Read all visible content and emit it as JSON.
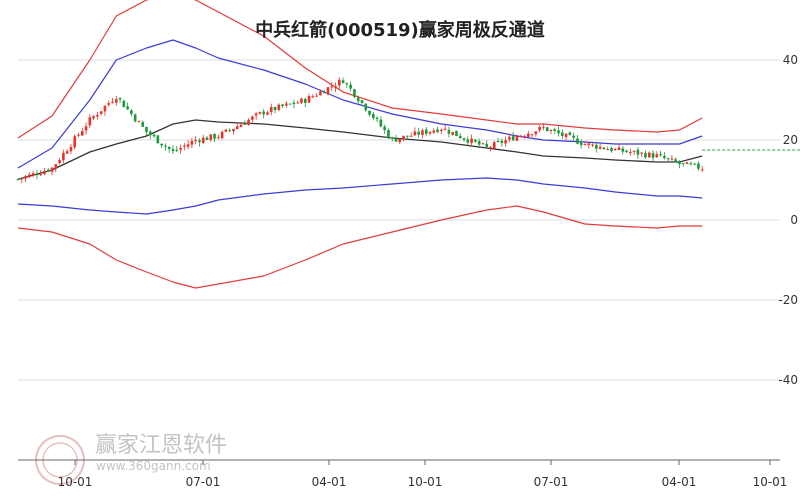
{
  "chart_data": {
    "type": "candlestick",
    "title": "中兵红箭(000519)赢家周极反通道",
    "x_tick_labels": [
      "10-01",
      "07-01",
      "04-01",
      "10-01",
      "07-01",
      "04-01",
      "10-01"
    ],
    "y_tick_labels": [
      "40",
      "20",
      "0",
      "-20",
      "-40"
    ],
    "ylim": [
      -40,
      40
    ],
    "grid": "horizontal",
    "colors": {
      "up": "#e8332a",
      "down": "#1a9a3a",
      "outer_band": "#e23b3b",
      "inner_band": "#3b3bd8",
      "middle_line": "#333333",
      "last_price_line": "#2ca02c"
    },
    "weeks": [
      1,
      10,
      20,
      27,
      35,
      42,
      48,
      54,
      66,
      77,
      87,
      100,
      113,
      125,
      133,
      140,
      151,
      159,
      170,
      176,
      182
    ],
    "closes": [
      10.2,
      13,
      25,
      31,
      22,
      17,
      20,
      21,
      27,
      30,
      35,
      20,
      23,
      18,
      21,
      23,
      19,
      17.5,
      16,
      14,
      13
    ],
    "outer_upper": [
      20.5,
      26,
      40,
      51,
      55,
      56.5,
      55,
      52,
      46,
      38,
      32,
      28,
      26.5,
      25,
      24,
      24,
      23,
      22.5,
      22,
      22.5,
      25.5
    ],
    "inner_upper": [
      13,
      18,
      30,
      40,
      43,
      45,
      43,
      40.5,
      37.5,
      34,
      30,
      26.5,
      24,
      22.5,
      21,
      20,
      19.5,
      19,
      19,
      19,
      21
    ],
    "middle": [
      10.2,
      12.5,
      17,
      19,
      21,
      24,
      25,
      24.5,
      24,
      23,
      22,
      20.5,
      19.5,
      18,
      17,
      16,
      15.5,
      15,
      14.5,
      14.5,
      16
    ],
    "inner_lower": [
      4,
      3.5,
      2.5,
      2,
      1.5,
      2.5,
      3.5,
      5,
      6.5,
      7.5,
      8,
      9,
      10,
      10.5,
      10,
      9,
      8,
      7,
      6,
      6,
      5.5
    ],
    "outer_lower": [
      -2,
      -3,
      -6,
      -10,
      -13,
      -15.5,
      -17,
      -16,
      -14,
      -10,
      -6,
      -3,
      0,
      2.5,
      3.5,
      2,
      -1,
      -1.5,
      -2,
      -1.5,
      -1.5
    ],
    "extra_upper_start": [
      21,
      22
    ],
    "last_price": 17.5
  },
  "watermark": {
    "brand": "赢家江恩软件",
    "url": "www.360gann.com"
  }
}
